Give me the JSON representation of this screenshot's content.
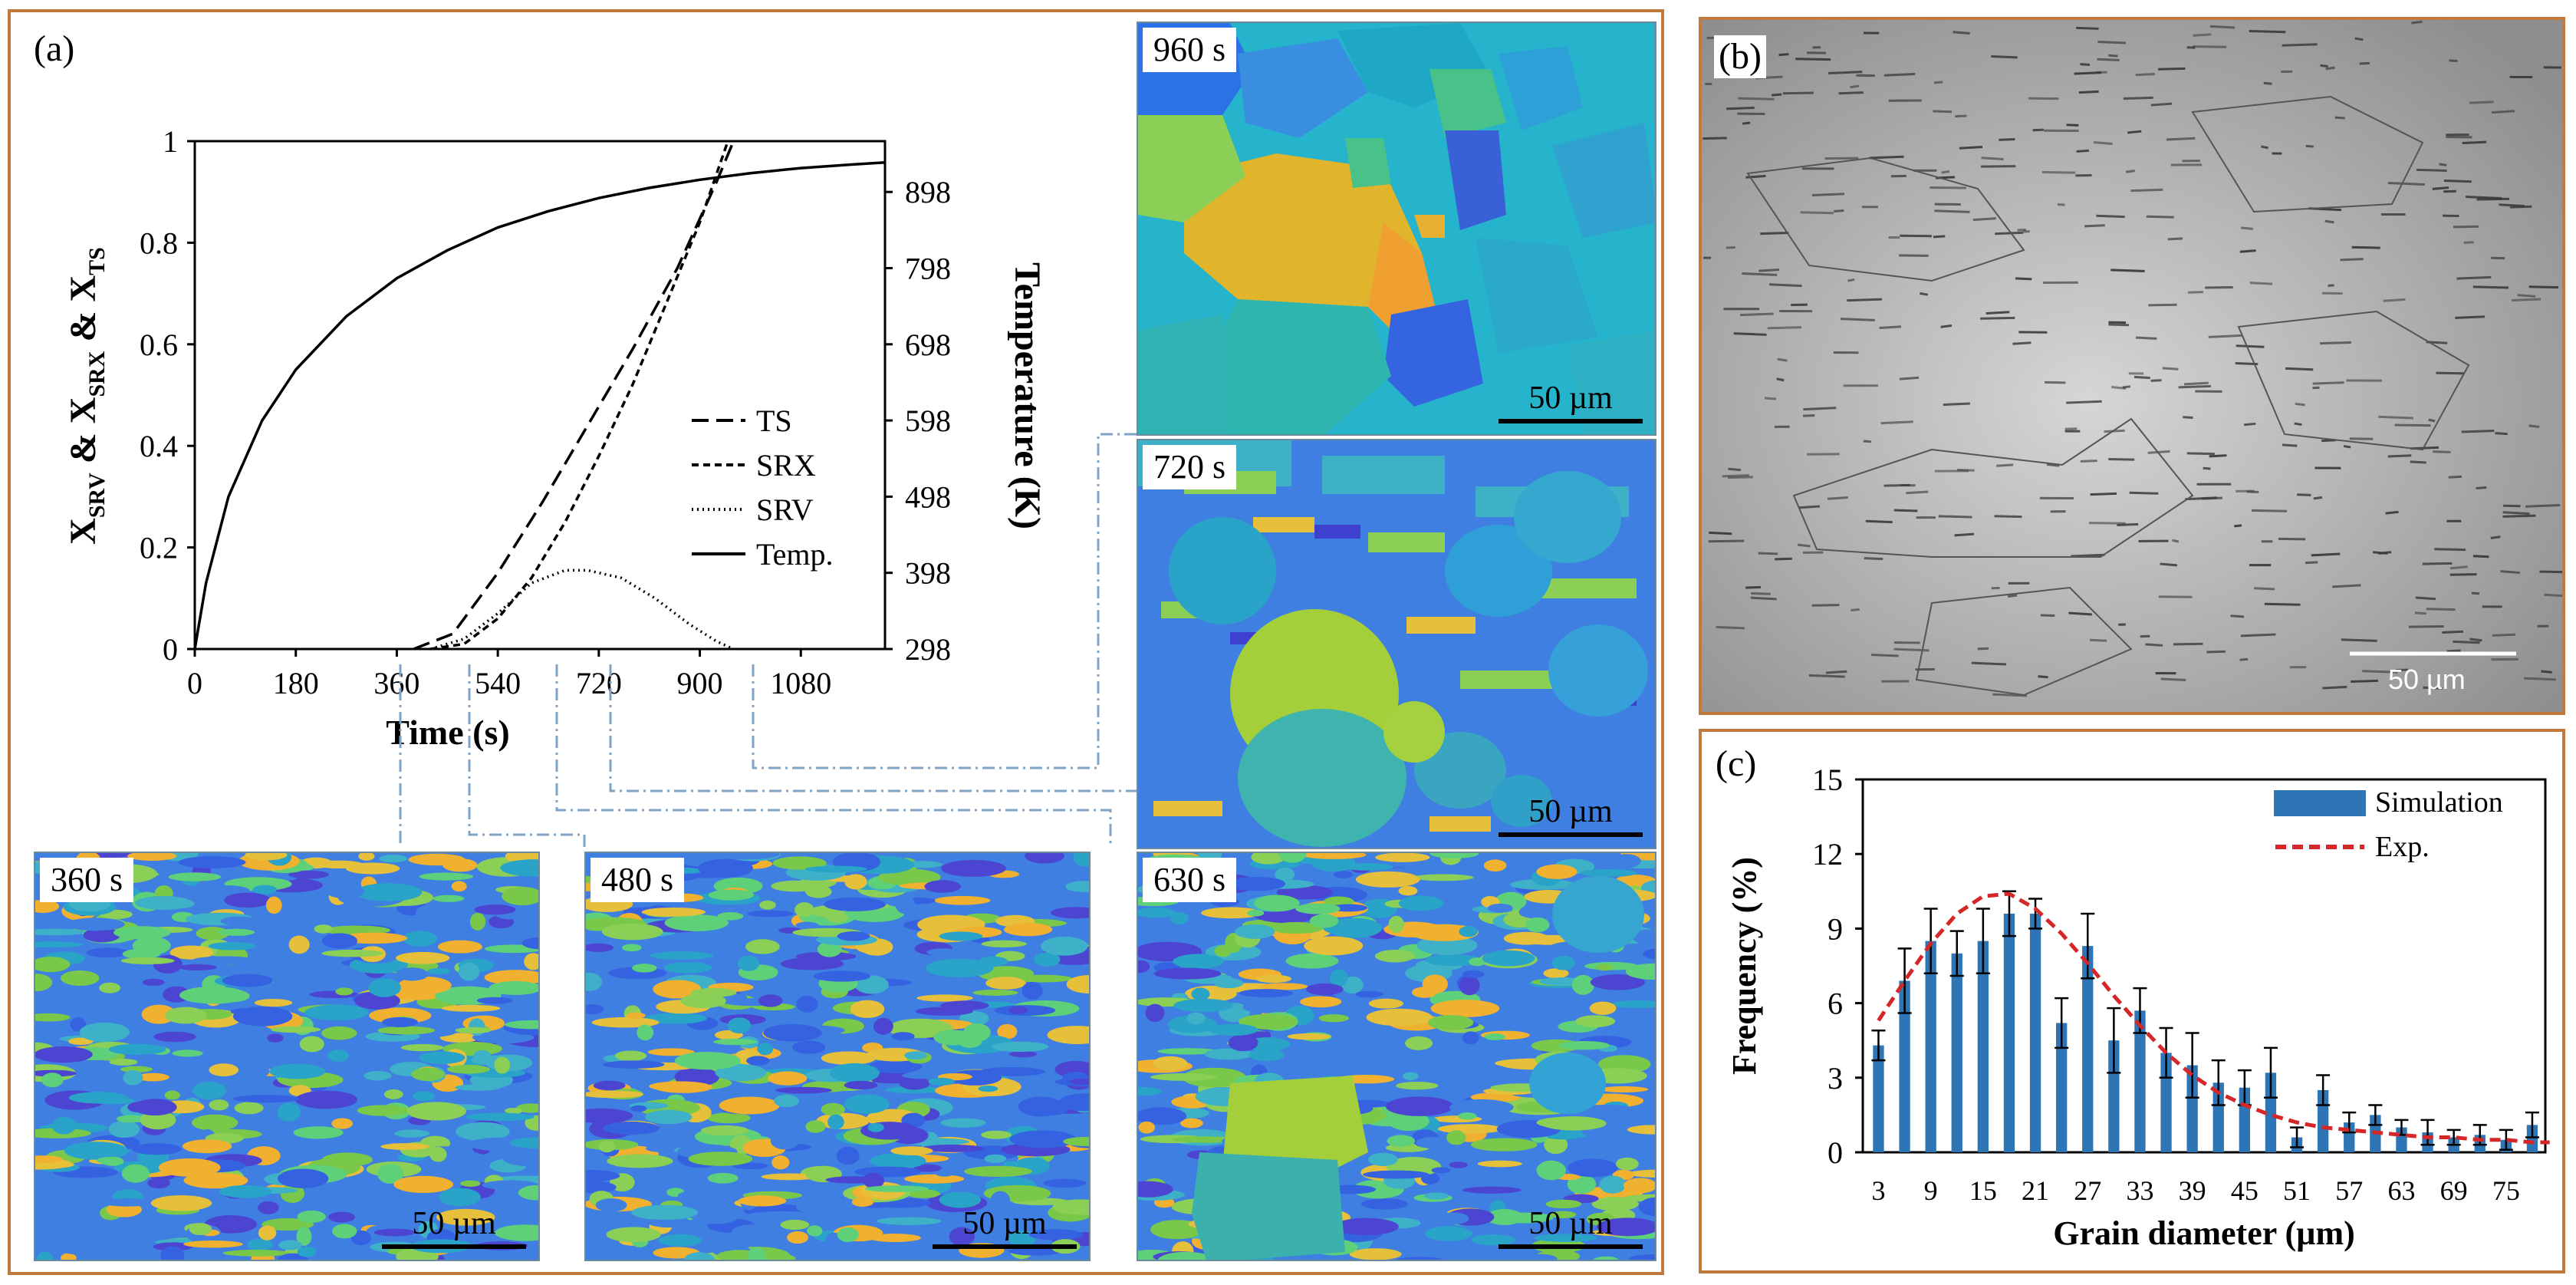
{
  "panel_a": {
    "label": "(a)",
    "chart_data": {
      "type": "line",
      "xlabel": "Time (s)",
      "ylabel_left_parts": [
        "X",
        "SRV",
        " & X",
        "SRX",
        " & X",
        "TS"
      ],
      "ylabel_right": "Temperature (K)",
      "xlim": [
        0,
        1230
      ],
      "ylim": [
        0,
        1
      ],
      "x_ticks": [
        "0",
        "180",
        "360",
        "540",
        "720",
        "900",
        "1080"
      ],
      "y_ticks_left": [
        "0",
        "0.2",
        "0.4",
        "0.6",
        "0.8",
        "1"
      ],
      "y_ticks_right": [
        "298",
        "398",
        "498",
        "598",
        "698",
        "798",
        "898"
      ],
      "series": [
        {
          "name": "TS",
          "style": "longdash",
          "x": [
            390,
            460,
            540,
            620,
            700,
            780,
            860,
            930,
            960
          ],
          "y": [
            0,
            0.03,
            0.15,
            0.29,
            0.44,
            0.59,
            0.75,
            0.92,
            1.0
          ]
        },
        {
          "name": "SRX",
          "style": "dash",
          "x": [
            420,
            480,
            540,
            600,
            660,
            720,
            780,
            840,
            900,
            950
          ],
          "y": [
            0,
            0.01,
            0.06,
            0.14,
            0.25,
            0.38,
            0.52,
            0.68,
            0.84,
            1.0
          ]
        },
        {
          "name": "SRV",
          "style": "dot",
          "x": [
            420,
            480,
            540,
            600,
            660,
            700,
            760,
            820,
            880,
            930,
            960
          ],
          "y": [
            0,
            0.02,
            0.07,
            0.13,
            0.155,
            0.155,
            0.14,
            0.1,
            0.05,
            0.015,
            0
          ]
        },
        {
          "name": "Temp.",
          "style": "solid",
          "x": [
            0,
            20,
            60,
            120,
            180,
            270,
            360,
            450,
            540,
            630,
            720,
            810,
            900,
            990,
            1080,
            1170,
            1230
          ],
          "y": [
            0,
            0.13,
            0.3,
            0.45,
            0.55,
            0.655,
            0.73,
            0.785,
            0.83,
            0.862,
            0.888,
            0.908,
            0.924,
            0.937,
            0.947,
            0.954,
            0.958
          ]
        }
      ],
      "legend": [
        "TS",
        "SRX",
        "SRV",
        "Temp."
      ]
    },
    "micrographs": [
      {
        "time": "960 s",
        "scale": "50 µm"
      },
      {
        "time": "720 s",
        "scale": "50 µm"
      },
      {
        "time": "360 s",
        "scale": "50 µm"
      },
      {
        "time": "480 s",
        "scale": "50 µm"
      },
      {
        "time": "630 s",
        "scale": "50 µm"
      }
    ]
  },
  "panel_b": {
    "label": "(b)",
    "scale": "50 µm"
  },
  "panel_c": {
    "label": "(c)",
    "chart_data": {
      "type": "bar",
      "xlabel": "Grain diameter (µm)",
      "ylabel": "Frequency (%)",
      "ylim": [
        0,
        15
      ],
      "y_ticks": [
        "0",
        "3",
        "6",
        "9",
        "12",
        "15"
      ],
      "x_ticks": [
        "3",
        "9",
        "15",
        "21",
        "27",
        "33",
        "39",
        "45",
        "51",
        "57",
        "63",
        "69",
        "75"
      ],
      "categories": [
        3,
        6,
        9,
        12,
        15,
        18,
        21,
        24,
        27,
        30,
        33,
        36,
        39,
        42,
        45,
        48,
        51,
        54,
        57,
        60,
        63,
        66,
        69,
        72,
        75,
        78
      ],
      "series": [
        {
          "name": "Simulation",
          "values": [
            4.3,
            6.9,
            8.5,
            8.0,
            8.5,
            9.6,
            9.6,
            5.2,
            8.3,
            4.5,
            5.7,
            4.0,
            3.5,
            2.8,
            2.6,
            3.2,
            0.6,
            2.5,
            1.2,
            1.5,
            1.0,
            0.8,
            0.6,
            0.7,
            0.5,
            1.1
          ],
          "errors": [
            0.6,
            1.3,
            1.3,
            0.9,
            1.3,
            0.9,
            0.6,
            1.0,
            1.3,
            1.3,
            0.9,
            1.0,
            1.3,
            0.9,
            0.7,
            1.0,
            0.4,
            0.6,
            0.4,
            0.4,
            0.3,
            0.5,
            0.3,
            0.4,
            0.4,
            0.5
          ]
        },
        {
          "name": "Exp.",
          "style": "dash",
          "color": "#d62728",
          "x": [
            3,
            6,
            9,
            12,
            15,
            18,
            21,
            24,
            27,
            30,
            33,
            36,
            39,
            42,
            45,
            48,
            51,
            54,
            57,
            60,
            63,
            66,
            69,
            72,
            75,
            78,
            80
          ],
          "y": [
            5.3,
            6.9,
            8.4,
            9.6,
            10.3,
            10.4,
            9.8,
            8.8,
            7.6,
            6.3,
            5.1,
            4.0,
            3.1,
            2.4,
            1.9,
            1.5,
            1.2,
            1.0,
            0.9,
            0.8,
            0.7,
            0.6,
            0.6,
            0.5,
            0.5,
            0.4,
            0.4
          ]
        }
      ],
      "legend": [
        "Simulation",
        "Exp."
      ],
      "bar_color": "#2e75b6"
    }
  }
}
